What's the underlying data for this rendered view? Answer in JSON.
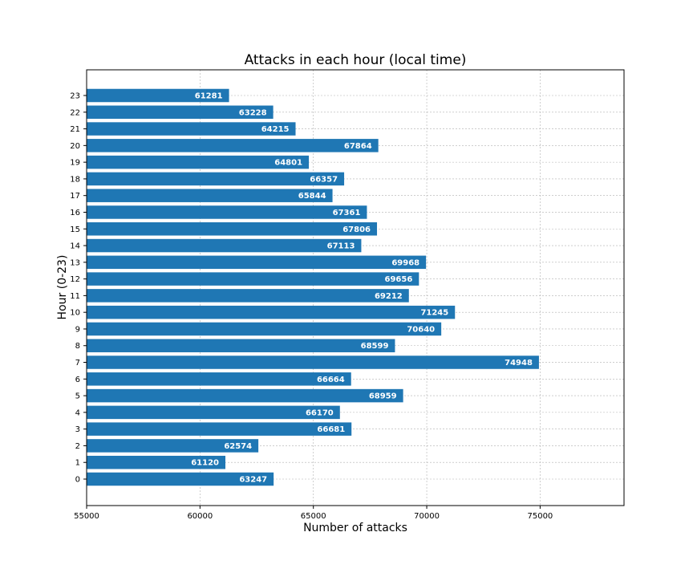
{
  "chart_data": {
    "type": "bar",
    "orientation": "horizontal",
    "title": "Attacks in each hour (local time)",
    "xlabel": "Number of attacks",
    "ylabel": "Hour (0-23)",
    "xlim": [
      55000,
      78700
    ],
    "xticks": [
      55000,
      60000,
      65000,
      70000,
      75000
    ],
    "categories": [
      "0",
      "1",
      "2",
      "3",
      "4",
      "5",
      "6",
      "7",
      "8",
      "9",
      "10",
      "11",
      "12",
      "13",
      "14",
      "15",
      "16",
      "17",
      "18",
      "19",
      "20",
      "21",
      "22",
      "23"
    ],
    "values": [
      63247,
      61120,
      62574,
      66681,
      66170,
      68959,
      66664,
      74948,
      68599,
      70640,
      71245,
      69212,
      69656,
      69968,
      67113,
      67806,
      67361,
      65844,
      66357,
      64801,
      67864,
      64215,
      63228,
      61281
    ],
    "grid": true,
    "bar_color": "#1f77b4",
    "data_labels": true
  }
}
